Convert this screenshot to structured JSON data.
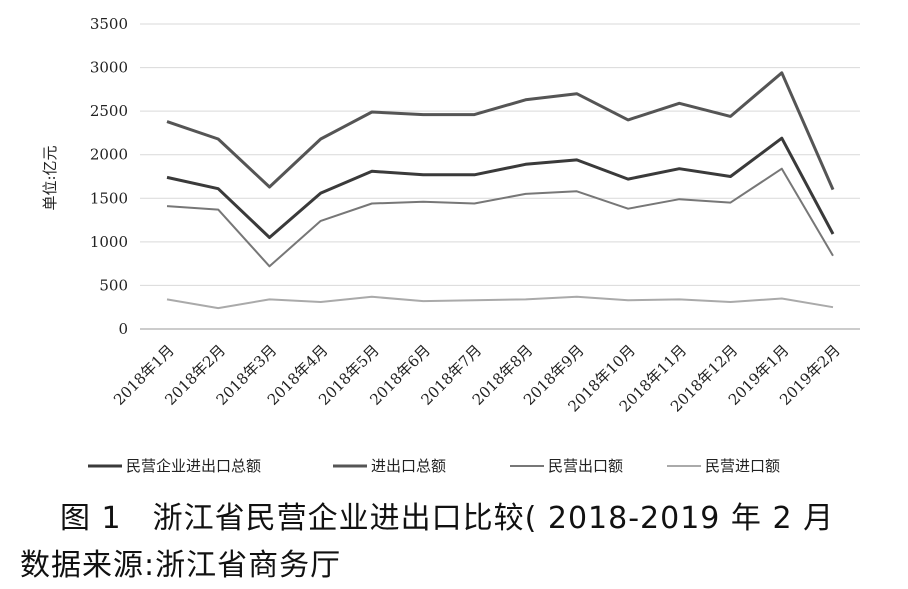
{
  "figure": {
    "caption": "图 1　浙江省民营企业进出口比较( 2018-2019 年 2 月",
    "source": "数据来源:浙江省商务厅"
  },
  "chart_data": {
    "type": "line",
    "ylabel": "单位:亿元",
    "ylim": [
      0,
      3500
    ],
    "yticks": [
      0,
      500,
      1000,
      1500,
      2000,
      2500,
      3000,
      3500
    ],
    "grid": true,
    "legend_position": "bottom",
    "categories": [
      "2018年1月",
      "2018年2月",
      "2018年3月",
      "2018年4月",
      "2018年5月",
      "2018年6月",
      "2018年7月",
      "2018年8月",
      "2018年9月",
      "2018年10月",
      "2018年11月",
      "2018年12月",
      "2019年1月",
      "2019年2月"
    ],
    "series": [
      {
        "name": "民营企业进出口总额",
        "color": "#3a3a3a",
        "values": [
          1740,
          1610,
          1050,
          1560,
          1810,
          1770,
          1770,
          1890,
          1940,
          1720,
          1840,
          1750,
          2190,
          1090
        ]
      },
      {
        "name": "进出口总额",
        "color": "#555555",
        "values": [
          2380,
          2180,
          1630,
          2180,
          2490,
          2460,
          2460,
          2630,
          2700,
          2400,
          2590,
          2440,
          2940,
          1600
        ]
      },
      {
        "name": "民营出口额",
        "color": "#777777",
        "values": [
          1410,
          1370,
          720,
          1240,
          1440,
          1460,
          1440,
          1550,
          1580,
          1380,
          1490,
          1450,
          1840,
          840
        ]
      },
      {
        "name": "民营进口额",
        "color": "#aaaaaa",
        "values": [
          340,
          240,
          340,
          310,
          370,
          320,
          330,
          340,
          370,
          330,
          340,
          310,
          350,
          250
        ]
      }
    ]
  }
}
